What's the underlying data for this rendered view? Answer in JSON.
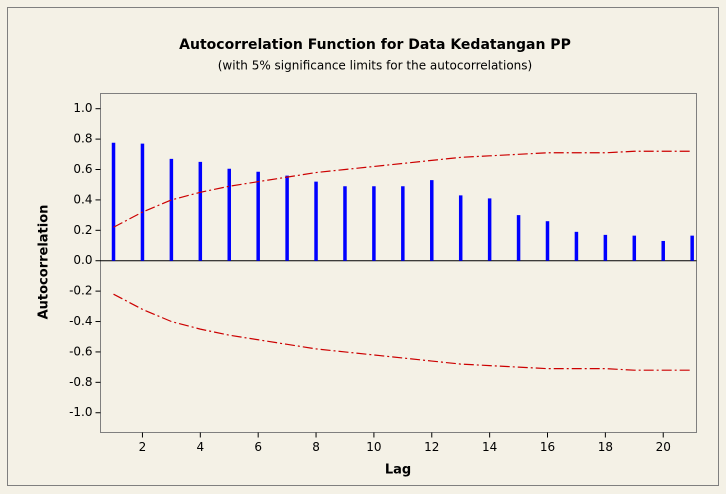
{
  "chart_data": {
    "type": "acf",
    "title": "Autocorrelation Function for Data Kedatangan PP",
    "subtitle": "(with 5% significance limits for the autocorrelations)",
    "x_label": "Lag",
    "y_label": "Autocorrelation",
    "x": [
      1,
      2,
      3,
      4,
      5,
      6,
      7,
      8,
      9,
      10,
      11,
      12,
      13,
      14,
      15,
      16,
      17,
      18,
      19,
      20,
      21
    ],
    "values": [
      0.776,
      0.77,
      0.67,
      0.65,
      0.605,
      0.585,
      0.56,
      0.52,
      0.49,
      0.49,
      0.49,
      0.53,
      0.43,
      0.41,
      0.3,
      0.26,
      0.19,
      0.17,
      0.165,
      0.13,
      0.165
    ],
    "color": "#0000ff",
    "upper_limit": [
      0.22,
      0.32,
      0.4,
      0.45,
      0.49,
      0.52,
      0.55,
      0.58,
      0.6,
      0.62,
      0.64,
      0.66,
      0.68,
      0.69,
      0.7,
      0.71,
      0.71,
      0.71,
      0.72,
      0.72,
      0.72
    ],
    "lower_limit": [
      -0.22,
      -0.32,
      -0.4,
      -0.45,
      -0.49,
      -0.52,
      -0.55,
      -0.58,
      -0.6,
      -0.62,
      -0.64,
      -0.66,
      -0.68,
      -0.69,
      -0.7,
      -0.71,
      -0.71,
      -0.71,
      -0.72,
      -0.72,
      -0.72
    ],
    "limit_color": "#cc0000",
    "xlim": [
      0.55,
      21.15
    ],
    "xticks": [
      2,
      4,
      6,
      8,
      10,
      12,
      14,
      16,
      18,
      20
    ],
    "ylim": [
      -1.13,
      1.1
    ],
    "yticks": [
      {
        "value": 1,
        "label": "1.0"
      },
      {
        "value": 0.8,
        "label": "0.8"
      },
      {
        "value": 0.6,
        "label": "0.6"
      },
      {
        "value": 0.4,
        "label": "0.4"
      },
      {
        "value": 0.2,
        "label": "0.2"
      },
      {
        "value": 0,
        "label": "0.0"
      },
      {
        "value": -0.2,
        "label": "-0.2"
      },
      {
        "value": -0.4,
        "label": "-0.4"
      },
      {
        "value": -0.6,
        "label": "-0.6"
      },
      {
        "value": -0.8,
        "label": "-0.8"
      },
      {
        "value": -1,
        "label": "-1.0"
      }
    ]
  }
}
